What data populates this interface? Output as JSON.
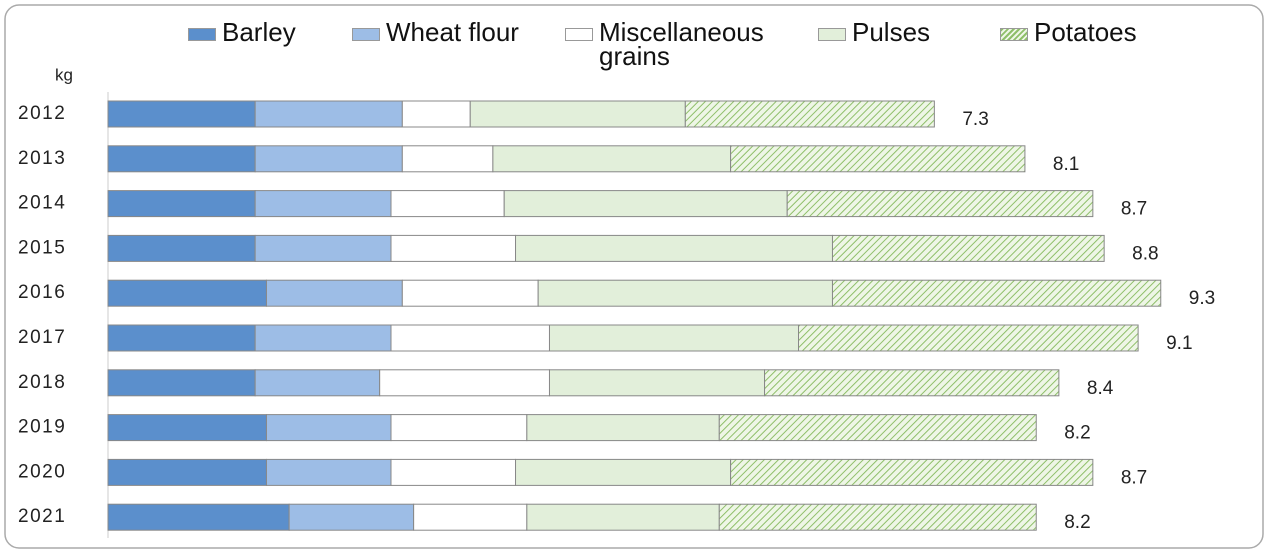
{
  "chart_data": {
    "type": "stacked-barh",
    "ylabel": "kg",
    "categories": [
      "2012",
      "2013",
      "2014",
      "2015",
      "2016",
      "2017",
      "2018",
      "2019",
      "2020",
      "2021"
    ],
    "xlim": [
      0,
      10
    ],
    "totals": [
      7.3,
      8.1,
      8.7,
      8.8,
      9.3,
      9.1,
      8.4,
      8.2,
      8.7,
      8.2
    ],
    "series": [
      {
        "name": "Barley",
        "color": "#5b8fcc",
        "values": [
          1.3,
          1.3,
          1.3,
          1.3,
          1.4,
          1.3,
          1.3,
          1.4,
          1.4,
          1.6
        ]
      },
      {
        "name": "Wheat flour",
        "color": "#9dbde6",
        "values": [
          1.3,
          1.3,
          1.2,
          1.2,
          1.2,
          1.2,
          1.1,
          1.1,
          1.1,
          1.1
        ]
      },
      {
        "name": "Miscellaneous grains",
        "color": "#ffffff",
        "values": [
          0.6,
          0.8,
          1.0,
          1.1,
          1.2,
          1.4,
          1.5,
          1.2,
          1.1,
          1.0
        ]
      },
      {
        "name": "Pulses",
        "color": "#e2efda",
        "values": [
          1.9,
          2.1,
          2.5,
          2.8,
          2.6,
          2.2,
          1.9,
          1.7,
          1.9,
          1.7
        ]
      },
      {
        "name": "Potatoes",
        "color": "#8fbf6a",
        "hatch": true,
        "values": [
          2.2,
          2.6,
          2.7,
          2.4,
          2.9,
          3.0,
          2.6,
          2.8,
          3.2,
          2.8
        ]
      }
    ]
  }
}
